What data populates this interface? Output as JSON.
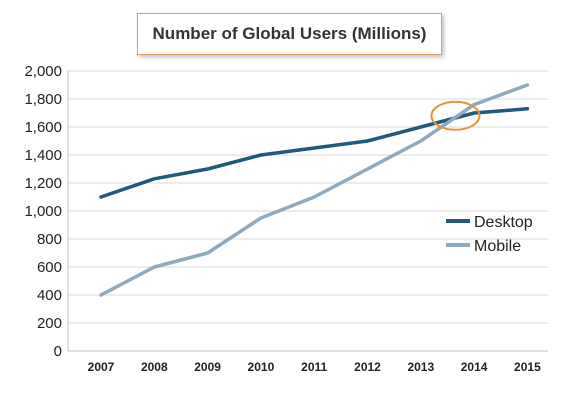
{
  "chart_data": {
    "type": "line",
    "title": "Number of Global Users (Millions)",
    "xlabel": "",
    "ylabel": "",
    "x": [
      "2007",
      "2008",
      "2009",
      "2010",
      "2011",
      "2012",
      "2013",
      "2014",
      "2015"
    ],
    "yticks": [
      "0",
      "200",
      "400",
      "600",
      "800",
      "1,000",
      "1,200",
      "1,400",
      "1,600",
      "1,800",
      "2,000"
    ],
    "ylim": [
      0,
      2000
    ],
    "grid": true,
    "legend_position": "right",
    "series": [
      {
        "name": "Desktop",
        "color": "#1f5a7a",
        "values": [
          1100,
          1230,
          1300,
          1400,
          1450,
          1500,
          1600,
          1700,
          1730
        ]
      },
      {
        "name": "Mobile",
        "color": "#8fa9bd",
        "values": [
          400,
          600,
          700,
          950,
          1100,
          1300,
          1500,
          1760,
          1900
        ]
      }
    ],
    "annotation": {
      "shape": "ellipse",
      "color": "#e8923a",
      "x": "2013.65",
      "y": 1680
    }
  }
}
